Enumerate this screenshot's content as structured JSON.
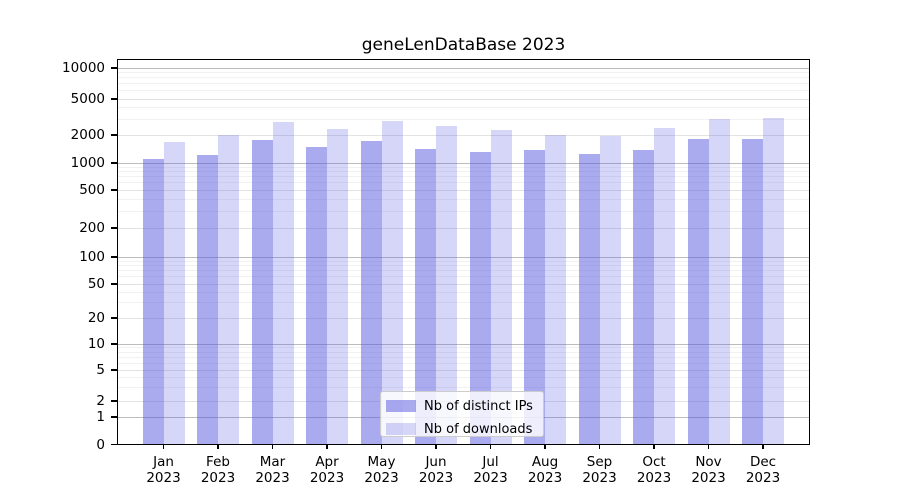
{
  "chart_data": {
    "type": "bar",
    "title": "geneLenDataBase 2023",
    "categories": [
      "Jan",
      "Feb",
      "Mar",
      "Apr",
      "May",
      "Jun",
      "Jul",
      "Aug",
      "Sep",
      "Oct",
      "Nov",
      "Dec"
    ],
    "year": "2023",
    "series": [
      {
        "name": "Nb of distinct IPs",
        "color": "rgba(85,85,224,0.50)",
        "values": [
          1100,
          1220,
          1750,
          1470,
          1740,
          1400,
          1320,
          1370,
          1240,
          1370,
          1820,
          1830
        ]
      },
      {
        "name": "Nb of downloads",
        "color": "rgba(85,85,224,0.24)",
        "values": [
          1700,
          1980,
          2780,
          2330,
          2850,
          2500,
          2250,
          1980,
          1970,
          2390,
          3040,
          3050
        ]
      }
    ],
    "xlabel": "",
    "ylabel": "",
    "yscale": "symlog",
    "ylim": [
      0,
      12500
    ],
    "yticks": [
      0,
      1,
      2,
      5,
      10,
      20,
      50,
      100,
      200,
      500,
      1000,
      2000,
      5000,
      10000
    ],
    "ytick_labels": [
      "0",
      "1",
      "2",
      "5",
      "10",
      "20",
      "50",
      "100",
      "200",
      "500",
      "1000",
      "2000",
      "5000",
      "10000"
    ],
    "grid": true,
    "legend_position": "lower center",
    "colors": {
      "grid_decade": "#bdbdbd",
      "grid_labeled": "#e2e2e2",
      "grid_minor": "#f1f1f1",
      "spine": "#000000",
      "text": "#000000",
      "legend_border": "#cccccc",
      "legend_bg": "rgba(255,255,255,0.8)"
    }
  }
}
